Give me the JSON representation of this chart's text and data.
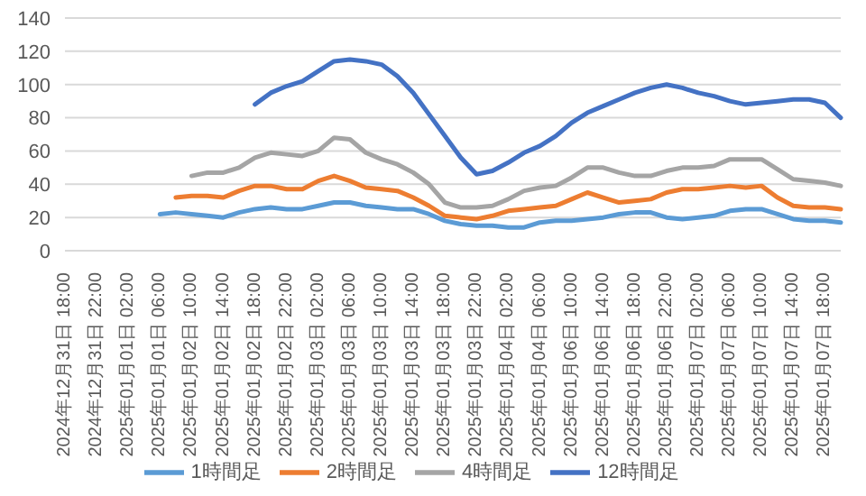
{
  "chart_data": {
    "type": "line",
    "categories": [
      "2024年12月31日 18:00",
      null,
      "2024年12月31日 22:00",
      null,
      "2025年01月01日 02:00",
      null,
      "2025年01月01日 06:00",
      null,
      "2025年01月02日 10:00",
      null,
      "2025年01月02日 14:00",
      null,
      "2025年01月02日 18:00",
      null,
      "2025年01月02日 22:00",
      null,
      "2025年01月03日 02:00",
      null,
      "2025年01月03日 06:00",
      null,
      "2025年01月03日 10:00",
      null,
      "2025年01月03日 14:00",
      null,
      "2025年01月03日 18:00",
      null,
      "2025年01月03日 22:00",
      null,
      "2025年01月04日 02:00",
      null,
      "2025年01月04日 06:00",
      null,
      "2025年01月06日 10:00",
      null,
      "2025年01月06日 14:00",
      null,
      "2025年01月06日 18:00",
      null,
      "2025年01月06日 22:00",
      null,
      "2025年01月07日 02:00",
      null,
      "2025年01月07日 06:00",
      null,
      "2025年01月07日 10:00",
      null,
      "2025年01月07日 14:00",
      null,
      "2025年01月07日 18:00",
      null
    ],
    "series": [
      {
        "name": "1時間足",
        "color": "#5b9bd5",
        "values": [
          null,
          null,
          null,
          null,
          null,
          null,
          22,
          23,
          22,
          21,
          20,
          23,
          25,
          26,
          25,
          25,
          27,
          29,
          29,
          27,
          26,
          25,
          25,
          22,
          18,
          16,
          15,
          15,
          14,
          14,
          17,
          18,
          18,
          19,
          20,
          22,
          23,
          23,
          20,
          19,
          20,
          21,
          24,
          25,
          25,
          22,
          19,
          18,
          18,
          17
        ]
      },
      {
        "name": "2時間足",
        "color": "#ed7d31",
        "values": [
          null,
          null,
          null,
          null,
          null,
          null,
          null,
          32,
          33,
          33,
          32,
          36,
          39,
          39,
          37,
          37,
          42,
          45,
          42,
          38,
          37,
          36,
          32,
          27,
          21,
          20,
          19,
          21,
          24,
          25,
          26,
          27,
          31,
          35,
          32,
          29,
          30,
          31,
          35,
          37,
          37,
          38,
          39,
          38,
          39,
          32,
          27,
          26,
          26,
          25
        ]
      },
      {
        "name": "4時間足",
        "color": "#a5a5a5",
        "values": [
          null,
          null,
          null,
          null,
          null,
          null,
          null,
          null,
          45,
          47,
          47,
          50,
          56,
          59,
          58,
          57,
          60,
          68,
          67,
          59,
          55,
          52,
          47,
          40,
          29,
          26,
          26,
          27,
          31,
          36,
          38,
          39,
          44,
          50,
          50,
          47,
          45,
          45,
          48,
          50,
          50,
          51,
          55,
          55,
          55,
          49,
          43,
          42,
          41,
          39
        ]
      },
      {
        "name": "12時間足",
        "color": "#4472c4",
        "values": [
          null,
          null,
          null,
          null,
          null,
          null,
          null,
          null,
          null,
          null,
          null,
          null,
          88,
          95,
          99,
          102,
          108,
          114,
          115,
          114,
          112,
          105,
          95,
          82,
          69,
          56,
          46,
          48,
          53,
          59,
          63,
          69,
          77,
          83,
          87,
          91,
          95,
          98,
          100,
          98,
          95,
          93,
          90,
          88,
          89,
          90,
          91,
          91,
          89,
          80
        ]
      }
    ],
    "ylim": [
      0,
      140
    ],
    "yticks": [
      0,
      20,
      40,
      60,
      80,
      100,
      120,
      140
    ],
    "grid": "y",
    "legend": "bottom",
    "marker": "none",
    "line_style": "solid"
  }
}
